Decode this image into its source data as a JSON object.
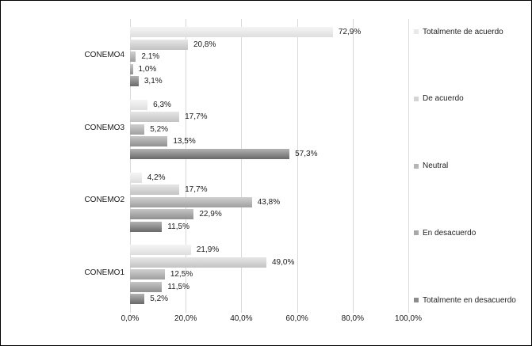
{
  "colors": {
    "background": "#ffffff",
    "border": "#000000",
    "gridline": "#d9d9d9",
    "text": "#1a1a1a"
  },
  "chart_data": {
    "type": "bar",
    "orientation": "horizontal",
    "title": "",
    "xlabel": "",
    "ylabel": "",
    "xlim": [
      0,
      100
    ],
    "grid": true,
    "legend_position": "right",
    "categories": [
      "CONEMO4",
      "CONEMO3",
      "CONEMO2",
      "CONEMO1"
    ],
    "x_ticks": [
      0,
      20,
      40,
      60,
      80,
      100
    ],
    "x_tick_labels": [
      "0,0%",
      "20,0%",
      "40,0%",
      "60,0%",
      "80,0%",
      "100,0%"
    ],
    "series": [
      {
        "name": "Totalmente de acuerdo",
        "legend_color": "#e8e8e8",
        "color_light": "#f5f5f5",
        "color_dark": "#dedede",
        "values": [
          72.9,
          6.3,
          4.2,
          21.9
        ],
        "labels": [
          "72,9%",
          "6,3%",
          "4,2%",
          "21,9%"
        ]
      },
      {
        "name": "De acuerdo",
        "legend_color": "#d4d4d4",
        "color_light": "#e6e6e6",
        "color_dark": "#c3c3c3",
        "values": [
          20.8,
          17.7,
          17.7,
          49.0
        ],
        "labels": [
          "20,8%",
          "17,7%",
          "17,7%",
          "49,0%"
        ]
      },
      {
        "name": "Neutral",
        "legend_color": "#b5b5b5",
        "color_light": "#d0d0d0",
        "color_dark": "#9f9f9f",
        "values": [
          2.1,
          5.2,
          43.8,
          12.5
        ],
        "labels": [
          "2,1%",
          "5,2%",
          "43,8%",
          "12,5%"
        ]
      },
      {
        "name": "En desacuerdo",
        "legend_color": "#a8a8a8",
        "color_light": "#c6c6c6",
        "color_dark": "#8f8f8f",
        "values": [
          1.0,
          13.5,
          22.9,
          11.5
        ],
        "labels": [
          "1,0%",
          "13,5%",
          "22,9%",
          "11,5%"
        ]
      },
      {
        "name": "Totalmente en desacuerdo",
        "legend_color": "#8c8c8c",
        "color_light": "#b3b3b3",
        "color_dark": "#696969",
        "values": [
          3.1,
          57.3,
          11.5,
          5.2
        ],
        "labels": [
          "3,1%",
          "57,3%",
          "11,5%",
          "5,2%"
        ]
      }
    ]
  }
}
